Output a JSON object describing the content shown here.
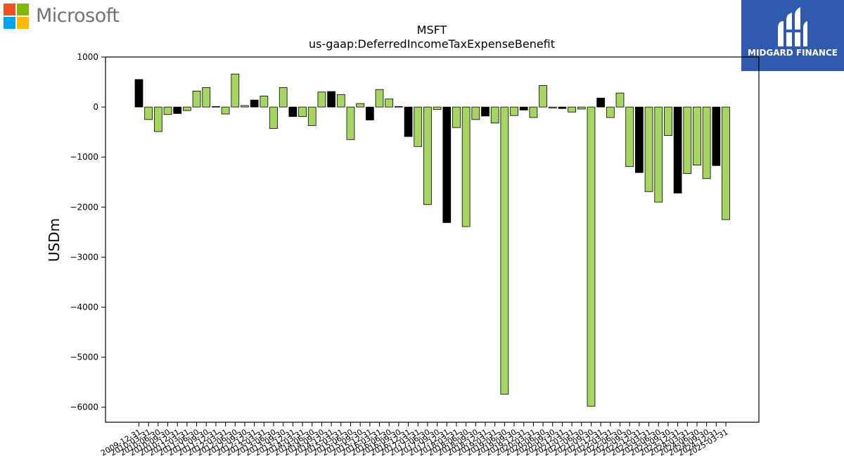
{
  "brand": {
    "left_logo_text": "Microsoft",
    "left_logo_icon": "microsoft-four-squares",
    "left_logo_colors": [
      "#f25022",
      "#7fba00",
      "#00a4ef",
      "#ffb900"
    ],
    "right_logo_text": "MIDGARD FINANCE",
    "right_logo_icon": "midgard-mark",
    "right_logo_bg": "#2f5aad"
  },
  "chart_data": {
    "type": "bar",
    "title": "MSFT",
    "subtitle": "us-gaap:DeferredIncomeTaxExpenseBenefit",
    "xlabel": "",
    "ylabel": "USDm",
    "ylim": [
      -6300,
      1000
    ],
    "yticks": [
      1000,
      0,
      -1000,
      -2000,
      -3000,
      -4000,
      -5000,
      -6000
    ],
    "grid": false,
    "legend": "none",
    "colors": {
      "annual": "#000000",
      "quarterly": "#a6d561",
      "edge": "#000000"
    },
    "categories": [
      "2009-12-31",
      "2010-03-31",
      "2010-06-30",
      "2010-09-30",
      "2010-12-31",
      "2011-03-31",
      "2011-06-30",
      "2011-09-30",
      "2011-12-31",
      "2012-03-31",
      "2012-06-30",
      "2012-09-30",
      "2012-12-31",
      "2013-03-31",
      "2013-06-30",
      "2013-09-30",
      "2013-12-31",
      "2014-03-31",
      "2014-06-30",
      "2014-09-30",
      "2014-12-31",
      "2015-03-31",
      "2015-06-30",
      "2015-09-30",
      "2015-12-31",
      "2016-03-31",
      "2016-06-30",
      "2016-09-30",
      "2016-12-31",
      "2017-03-31",
      "2017-06-30",
      "2017-09-30",
      "2017-12-31",
      "2018-03-31",
      "2018-06-30",
      "2018-09-30",
      "2018-12-31",
      "2019-03-31",
      "2019-06-30",
      "2019-09-30",
      "2019-12-31",
      "2020-03-31",
      "2020-06-30",
      "2020-09-30",
      "2020-12-31",
      "2021-03-31",
      "2021-06-30",
      "2021-09-30",
      "2021-12-31",
      "2022-03-31",
      "2022-06-30",
      "2022-09-30",
      "2022-12-31",
      "2023-03-31",
      "2023-06-30",
      "2023-09-30",
      "2023-12-31",
      "2024-03-31",
      "2024-06-30",
      "2024-09-30",
      "2024-12-31",
      "2025-03-31"
    ],
    "visible_tick_labels": [
      "2009-12-31",
      "2010-03-31",
      "2010-06-30",
      "2010-09-30",
      "2010-12-31",
      "2011-03-31",
      "2011-06-30",
      "2011-09-30",
      "2011-12-31",
      "2012-03-31",
      "2012-06-30",
      "2012-09-30",
      "2012-12-31",
      "2013-03-31",
      "2013-06-30",
      "2013-09-30",
      "2013-12-31",
      "2014-03-31",
      "2014-06-30",
      "2014-09-30",
      "2014-12-31",
      "2015-03-31",
      "2015-06-30",
      "2015-09-30",
      "2015-12-31",
      "2016-03-31",
      "2016-06-30",
      "2016-09-30",
      "2016-12-31",
      "2017-03-31",
      "2017-06-30",
      "2017-09-30",
      "2017-12-31",
      "2018-03-31",
      "2018-06-30",
      "2018-09-30",
      "2018-12-31",
      "2019-03-31",
      "2019-06-30",
      "2019-09-30",
      "2019-12-31",
      "2020-03-31",
      "2020-06-30",
      "2020-09-30",
      "2020-12-31",
      "2021-03-31",
      "2021-06-30",
      "2021-09-30",
      "2021-12-31",
      "2022-03-31",
      "2022-06-30",
      "2022-09-30",
      "2022-12-31",
      "2023-03-31",
      "2023-06-30",
      "2023-09-30",
      "2023-12-31",
      "2024-03-31",
      "2024-06-30",
      "2024-09-30",
      "2024-12-31",
      "2025-03-31"
    ],
    "values": [
      550,
      -250,
      -490,
      -150,
      -130,
      -70,
      320,
      390,
      10,
      -140,
      660,
      30,
      140,
      220,
      -430,
      390,
      -190,
      -190,
      -370,
      300,
      310,
      250,
      -650,
      70,
      -260,
      350,
      160,
      10,
      -590,
      -790,
      -1950,
      -50,
      -2310,
      -410,
      -2390,
      -250,
      -180,
      -320,
      -5740,
      -170,
      -60,
      -210,
      430,
      -20,
      -30,
      -100,
      -40,
      -5980,
      180,
      -210,
      280,
      -1190,
      -1310,
      -1690,
      -1900,
      -570,
      -1720,
      -1330,
      -1160,
      -1430,
      -1170,
      -2250
    ],
    "bar_kind": [
      "annual",
      "quarterly",
      "quarterly",
      "quarterly",
      "annual",
      "quarterly",
      "quarterly",
      "quarterly",
      "annual",
      "quarterly",
      "quarterly",
      "quarterly",
      "annual",
      "quarterly",
      "quarterly",
      "quarterly",
      "annual",
      "quarterly",
      "quarterly",
      "quarterly",
      "annual",
      "quarterly",
      "quarterly",
      "quarterly",
      "annual",
      "quarterly",
      "quarterly",
      "quarterly",
      "annual",
      "quarterly",
      "quarterly",
      "quarterly",
      "annual",
      "quarterly",
      "quarterly",
      "quarterly",
      "annual",
      "quarterly",
      "quarterly",
      "quarterly",
      "annual",
      "quarterly",
      "quarterly",
      "quarterly",
      "annual",
      "quarterly",
      "quarterly",
      "quarterly",
      "annual",
      "quarterly",
      "quarterly",
      "quarterly",
      "annual",
      "quarterly",
      "quarterly",
      "quarterly",
      "annual",
      "quarterly",
      "quarterly",
      "quarterly",
      "annual",
      "quarterly"
    ]
  }
}
